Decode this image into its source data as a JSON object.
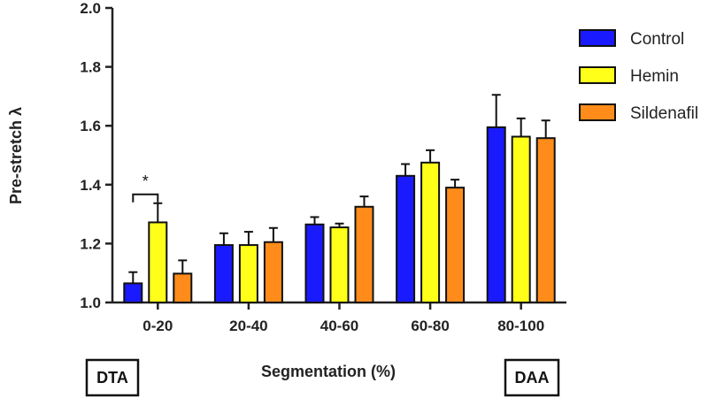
{
  "chart_data": {
    "type": "bar",
    "title": "",
    "xlabel": "Segmentation (%)",
    "ylabel": "Pre-stretch λ",
    "ylim": [
      1.0,
      2.0
    ],
    "yticks": [
      1.0,
      1.2,
      1.4,
      1.6,
      1.8,
      2.0
    ],
    "ytick_labels": [
      "1.0",
      "1.2",
      "1.4",
      "1.6",
      "1.8",
      "2.0"
    ],
    "categories": [
      "0-20",
      "20-40",
      "40-60",
      "60-80",
      "80-100"
    ],
    "series": [
      {
        "name": "Control",
        "color": "#1a1aff",
        "values": [
          1.065,
          1.195,
          1.265,
          1.43,
          1.595
        ],
        "errors": [
          0.038,
          0.04,
          0.025,
          0.04,
          0.11
        ]
      },
      {
        "name": "Hemin",
        "color": "#ffff1a",
        "values": [
          1.272,
          1.195,
          1.255,
          1.475,
          1.563
        ],
        "errors": [
          0.065,
          0.045,
          0.013,
          0.042,
          0.062
        ]
      },
      {
        "name": "Sildenafil",
        "color": "#ff8c1a",
        "values": [
          1.098,
          1.205,
          1.325,
          1.39,
          1.558
        ],
        "errors": [
          0.045,
          0.048,
          0.035,
          0.027,
          0.06
        ]
      }
    ],
    "significance": {
      "category": "0-20",
      "label": "*"
    },
    "legend": "top-right",
    "grid": false,
    "annotations": {
      "left_box": "DTA",
      "right_box": "DAA"
    }
  }
}
